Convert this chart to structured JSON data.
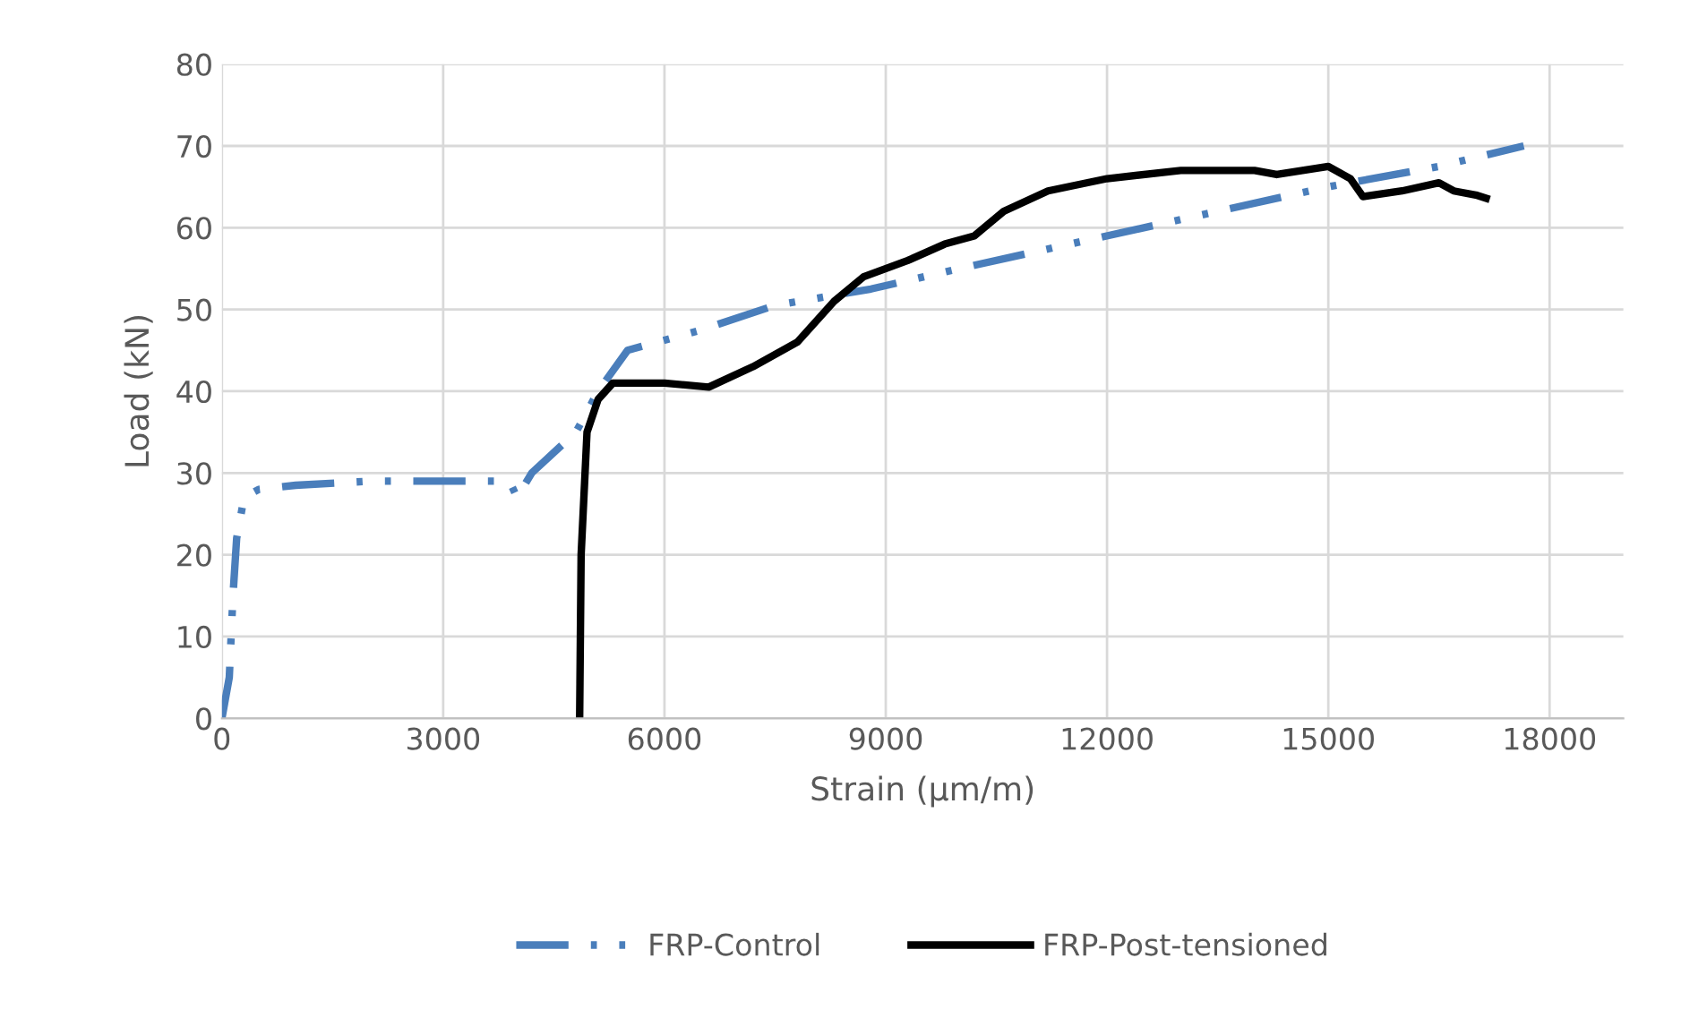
{
  "chart_data": {
    "type": "line",
    "xlabel": "Strain (µm/m)",
    "ylabel": "Load (kN)",
    "xlim": [
      0,
      19000
    ],
    "xticks": [
      0,
      3000,
      6000,
      9000,
      12000,
      15000,
      18000
    ],
    "ylim": [
      0,
      80
    ],
    "yticks": [
      0,
      10,
      20,
      30,
      40,
      50,
      60,
      70,
      80
    ],
    "grid": true,
    "legend": "bottom",
    "marker": "none",
    "series": [
      {
        "name": "FRP-Control",
        "color": "#4a7ebb",
        "line_style": "dashdot",
        "x": [
          0,
          100,
          150,
          200,
          300,
          500,
          1000,
          2000,
          3000,
          3900,
          4000,
          4200,
          4800,
          5100,
          5500,
          6500,
          7500,
          8800,
          10000,
          11500,
          13500,
          15000,
          16500,
          17650
        ],
        "values": [
          0,
          5,
          15,
          22,
          27,
          28,
          28.5,
          29,
          29,
          29,
          27,
          30,
          35,
          40,
          45,
          47.5,
          50.5,
          52.5,
          55,
          58,
          62,
          65,
          67.5,
          70
        ]
      },
      {
        "name": "FRP-Post-tensioned",
        "color": "#000000",
        "line_style": "solid",
        "x": [
          4850,
          4870,
          4950,
          5100,
          5300,
          6000,
          6600,
          7200,
          7800,
          8300,
          8700,
          9300,
          9800,
          10200,
          10600,
          11200,
          12000,
          13000,
          14000,
          14300,
          15000,
          15300,
          15470,
          16000,
          16500,
          16700,
          17000,
          17140
        ],
        "values": [
          0,
          20,
          35,
          39,
          41,
          41,
          40.5,
          43,
          46,
          51,
          54,
          56,
          58,
          59,
          62,
          64.5,
          66,
          67,
          67,
          66.5,
          67.5,
          66,
          63.8,
          64.5,
          65.5,
          64.5,
          64,
          63.6
        ]
      }
    ]
  }
}
